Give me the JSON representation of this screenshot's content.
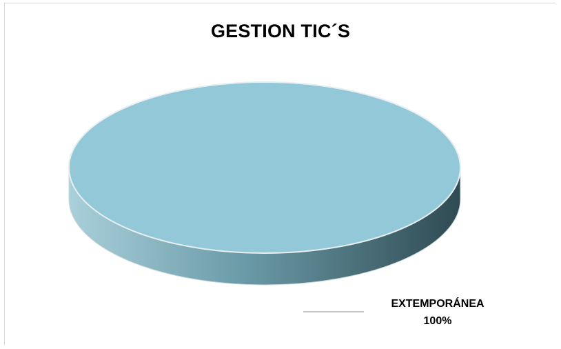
{
  "chart_data": {
    "type": "pie",
    "title": "GESTION TIC´S",
    "style": "3d",
    "slices": [
      {
        "category": "EXTEMPORÁNEA",
        "value": 100,
        "label": "100%",
        "top_color": "#93c8d9",
        "side_color_light": "#a9d0db",
        "side_color_dark": "#2f4a52"
      }
    ],
    "legend": "none"
  }
}
